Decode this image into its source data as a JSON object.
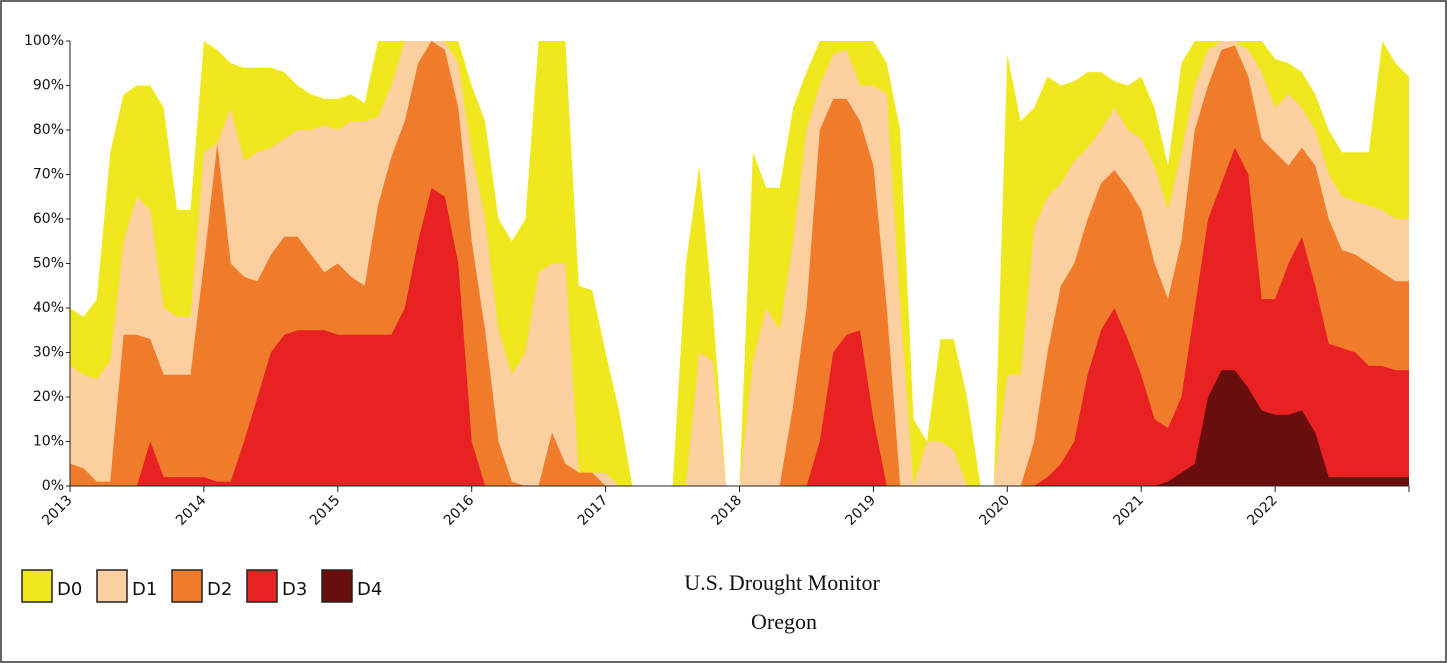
{
  "chart_data": {
    "type": "area",
    "title": "U.S. Drought Monitor",
    "subtitle": "Oregon",
    "x": [
      2013.0,
      2013.1,
      2013.2,
      2013.3,
      2013.4,
      2013.5,
      2013.6,
      2013.7,
      2013.8,
      2013.9,
      2014.0,
      2014.1,
      2014.2,
      2014.3,
      2014.4,
      2014.5,
      2014.6,
      2014.7,
      2014.8,
      2014.9,
      2015.0,
      2015.1,
      2015.2,
      2015.3,
      2015.4,
      2015.5,
      2015.6,
      2015.7,
      2015.8,
      2015.9,
      2016.0,
      2016.1,
      2016.2,
      2016.3,
      2016.4,
      2016.5,
      2016.6,
      2016.7,
      2016.8,
      2016.9,
      2017.0,
      2017.1,
      2017.2,
      2017.3,
      2017.4,
      2017.5,
      2017.6,
      2017.7,
      2017.8,
      2017.9,
      2018.0,
      2018.1,
      2018.2,
      2018.3,
      2018.4,
      2018.5,
      2018.6,
      2018.7,
      2018.8,
      2018.9,
      2019.0,
      2019.1,
      2019.2,
      2019.3,
      2019.4,
      2019.5,
      2019.6,
      2019.7,
      2019.8,
      2019.9,
      2020.0,
      2020.1,
      2020.2,
      2020.3,
      2020.4,
      2020.5,
      2020.6,
      2020.7,
      2020.8,
      2020.9,
      2021.0,
      2021.1,
      2021.2,
      2021.3,
      2021.4,
      2021.5,
      2021.6,
      2021.7,
      2021.8,
      2021.9,
      2022.0,
      2022.1,
      2022.2,
      2022.3,
      2022.4,
      2022.5,
      2022.6,
      2022.7,
      2022.8,
      2022.9,
      2023.0
    ],
    "series": [
      {
        "name": "D0",
        "color": "#f0e81e",
        "values": [
          40,
          38,
          42,
          75,
          88,
          90,
          90,
          85,
          62,
          62,
          100,
          98,
          95,
          94,
          94,
          94,
          93,
          90,
          88,
          87,
          87,
          88,
          86,
          100,
          100,
          100,
          100,
          100,
          100,
          100,
          90,
          82,
          60,
          55,
          60,
          100,
          100,
          100,
          45,
          44,
          30,
          17,
          0,
          0,
          0,
          0,
          50,
          72,
          40,
          0,
          0,
          75,
          67,
          67,
          85,
          93,
          100,
          100,
          100,
          100,
          100,
          95,
          80,
          15,
          10,
          33,
          33,
          20,
          0,
          0,
          97,
          82,
          85,
          92,
          90,
          91,
          93,
          93,
          91,
          90,
          92,
          85,
          72,
          95,
          100,
          100,
          100,
          100,
          100,
          100,
          96,
          95,
          93,
          88,
          80,
          75,
          75,
          75,
          100,
          95,
          92
        ]
      },
      {
        "name": "D1",
        "color": "#fbcfa0",
        "values": [
          27,
          25,
          24,
          28,
          55,
          65,
          62,
          40,
          38,
          38,
          75,
          77,
          85,
          73,
          75,
          76,
          78,
          80,
          80,
          81,
          80,
          82,
          82,
          83,
          90,
          100,
          100,
          100,
          100,
          95,
          75,
          60,
          35,
          25,
          30,
          48,
          50,
          50,
          3,
          3,
          3,
          0,
          0,
          0,
          0,
          0,
          0,
          30,
          28,
          0,
          0,
          28,
          40,
          35,
          55,
          80,
          90,
          97,
          98,
          90,
          90,
          88,
          40,
          0,
          10,
          10,
          8,
          0,
          0,
          0,
          25,
          25,
          58,
          65,
          68,
          73,
          76,
          80,
          85,
          80,
          78,
          72,
          62,
          75,
          90,
          98,
          100,
          100,
          98,
          93,
          85,
          88,
          85,
          80,
          70,
          65,
          64,
          63,
          62,
          60,
          60
        ]
      },
      {
        "name": "D2",
        "color": "#f07c2b",
        "values": [
          5,
          4,
          1,
          1,
          34,
          34,
          33,
          25,
          25,
          25,
          50,
          77,
          50,
          47,
          46,
          52,
          56,
          56,
          52,
          48,
          50,
          47,
          45,
          63,
          74,
          82,
          95,
          100,
          98,
          85,
          55,
          35,
          10,
          1,
          0,
          0,
          12,
          5,
          3,
          3,
          0,
          0,
          0,
          0,
          0,
          0,
          0,
          0,
          0,
          0,
          0,
          0,
          0,
          0,
          18,
          40,
          80,
          87,
          87,
          82,
          72,
          40,
          0,
          0,
          0,
          0,
          0,
          0,
          0,
          0,
          0,
          0,
          10,
          30,
          45,
          50,
          60,
          68,
          71,
          67,
          62,
          50,
          42,
          55,
          80,
          90,
          98,
          99,
          92,
          78,
          75,
          72,
          76,
          72,
          60,
          53,
          52,
          50,
          48,
          46,
          46
        ]
      },
      {
        "name": "D3",
        "color": "#e82222",
        "values": [
          0,
          0,
          0,
          0,
          0,
          0,
          10,
          2,
          2,
          2,
          2,
          1,
          1,
          10,
          20,
          30,
          34,
          35,
          35,
          35,
          34,
          34,
          34,
          34,
          34,
          40,
          55,
          67,
          65,
          50,
          10,
          0,
          0,
          0,
          0,
          0,
          0,
          0,
          0,
          0,
          0,
          0,
          0,
          0,
          0,
          0,
          0,
          0,
          0,
          0,
          0,
          0,
          0,
          0,
          0,
          0,
          10,
          30,
          34,
          35,
          15,
          0,
          0,
          0,
          0,
          0,
          0,
          0,
          0,
          0,
          0,
          0,
          0,
          2,
          5,
          10,
          25,
          35,
          40,
          33,
          25,
          15,
          13,
          20,
          40,
          60,
          68,
          76,
          70,
          42,
          42,
          50,
          56,
          45,
          32,
          31,
          30,
          27,
          27,
          26,
          26
        ]
      },
      {
        "name": "D4",
        "color": "#6a0d0d",
        "values": [
          0,
          0,
          0,
          0,
          0,
          0,
          0,
          0,
          0,
          0,
          0,
          0,
          0,
          0,
          0,
          0,
          0,
          0,
          0,
          0,
          0,
          0,
          0,
          0,
          0,
          0,
          0,
          0,
          0,
          0,
          0,
          0,
          0,
          0,
          0,
          0,
          0,
          0,
          0,
          0,
          0,
          0,
          0,
          0,
          0,
          0,
          0,
          0,
          0,
          0,
          0,
          0,
          0,
          0,
          0,
          0,
          0,
          0,
          0,
          0,
          0,
          0,
          0,
          0,
          0,
          0,
          0,
          0,
          0,
          0,
          0,
          0,
          0,
          0,
          0,
          0,
          0,
          0,
          0,
          0,
          0,
          0,
          1,
          3,
          5,
          20,
          26,
          26,
          22,
          17,
          16,
          16,
          17,
          12,
          2,
          2,
          2,
          2,
          2,
          2,
          2
        ]
      }
    ],
    "xlim": [
      2013,
      2023
    ],
    "xticks": [
      2013,
      2014,
      2015,
      2016,
      2017,
      2018,
      2019,
      2020,
      2021,
      2022
    ],
    "ylim": [
      0,
      100
    ],
    "yticks": [
      {
        "value": 0,
        "label": "0%"
      },
      {
        "value": 10,
        "label": "10%"
      },
      {
        "value": 20,
        "label": "20%"
      },
      {
        "value": 30,
        "label": "30%"
      },
      {
        "value": 40,
        "label": "40%"
      },
      {
        "value": 50,
        "label": "50%"
      },
      {
        "value": 60,
        "label": "60%"
      },
      {
        "value": 70,
        "label": "70%"
      },
      {
        "value": 80,
        "label": "80%"
      },
      {
        "value": 90,
        "label": "90%"
      },
      {
        "value": 100,
        "label": "100%"
      }
    ],
    "legend": "bottom-left"
  }
}
